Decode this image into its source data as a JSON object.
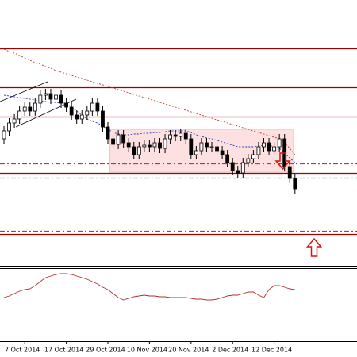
{
  "chart_data": {
    "type": "candlestick",
    "categories": [
      null,
      null,
      null,
      null,
      "7 Oct 2014",
      null,
      null,
      null,
      null,
      null,
      null,
      null,
      "17 Oct 2014",
      null,
      null,
      null,
      null,
      null,
      null,
      null,
      "29 Oct 2014",
      null,
      null,
      null,
      null,
      null,
      null,
      null,
      "10 Nov 2014",
      null,
      null,
      null,
      null,
      null,
      null,
      null,
      "20 Nov 2014",
      null,
      null,
      null,
      null,
      null,
      null,
      null,
      "2 Dec 2014",
      null,
      null,
      null,
      null,
      null,
      null,
      null,
      "12 Dec 2014",
      null,
      null,
      null,
      null
    ],
    "open": [
      160,
      170,
      180,
      185,
      195,
      200,
      195,
      205,
      215,
      217,
      210,
      215,
      205,
      200,
      190,
      185,
      190,
      195,
      205,
      195,
      175,
      160,
      153,
      165,
      155,
      150,
      140,
      150,
      152,
      150,
      155,
      148,
      160,
      165,
      163,
      167,
      160,
      140,
      145,
      155,
      150,
      150,
      145,
      140,
      130,
      120,
      117,
      130,
      135,
      140,
      150,
      155,
      145,
      150,
      160,
      125,
      110
    ],
    "high": [
      176,
      186,
      191,
      201,
      206,
      206,
      211,
      221,
      223,
      223,
      221,
      221,
      211,
      206,
      196,
      196,
      201,
      211,
      211,
      201,
      181,
      166,
      171,
      171,
      161,
      156,
      156,
      158,
      158,
      161,
      161,
      166,
      171,
      171,
      173,
      173,
      166,
      151,
      161,
      161,
      156,
      156,
      151,
      146,
      136,
      126,
      136,
      141,
      146,
      156,
      161,
      161,
      156,
      166,
      166,
      131,
      116
    ],
    "low": [
      154,
      164,
      174,
      179,
      189,
      189,
      189,
      199,
      209,
      204,
      204,
      199,
      194,
      184,
      179,
      179,
      184,
      189,
      189,
      169,
      154,
      147,
      147,
      149,
      144,
      134,
      134,
      144,
      144,
      144,
      142,
      142,
      154,
      157,
      157,
      154,
      134,
      134,
      139,
      144,
      144,
      139,
      134,
      124,
      114,
      111,
      111,
      124,
      129,
      134,
      144,
      139,
      139,
      144,
      119,
      104,
      91
    ],
    "close": [
      170,
      180,
      185,
      195,
      200,
      195,
      205,
      215,
      217,
      210,
      215,
      205,
      200,
      190,
      185,
      190,
      195,
      205,
      195,
      175,
      160,
      153,
      165,
      155,
      150,
      140,
      150,
      152,
      150,
      155,
      148,
      160,
      165,
      163,
      167,
      160,
      140,
      145,
      155,
      150,
      150,
      145,
      140,
      130,
      120,
      117,
      130,
      135,
      140,
      150,
      155,
      145,
      150,
      160,
      125,
      110,
      97
    ],
    "ylim": [
      0,
      335
    ],
    "moving_averages": [
      {
        "color": "#c0392b",
        "values": [
          273,
          270,
          268,
          265,
          262,
          259,
          256,
          254,
          251,
          249,
          246,
          244,
          242,
          240,
          238,
          236,
          234,
          232,
          230,
          228,
          226,
          224,
          222,
          220,
          218,
          216,
          214,
          212,
          210,
          208,
          206,
          204,
          202,
          200,
          198,
          196,
          194,
          192,
          190,
          188,
          186,
          184,
          182,
          180,
          178,
          176,
          174,
          172,
          170,
          168,
          166,
          164,
          162,
          160,
          155,
          148,
          140
        ]
      },
      {
        "color": "#2436c8",
        "values": [
          215,
          214,
          213,
          212,
          211,
          210,
          209,
          208,
          207,
          206,
          206,
          205,
          205,
          200,
          195,
          190,
          185,
          182,
          180,
          176,
          172,
          168,
          166,
          165,
          165,
          166,
          166,
          167,
          167,
          168,
          168,
          169,
          170,
          170,
          170,
          170,
          168,
          165,
          163,
          161,
          160,
          158,
          156,
          154,
          152,
          150,
          150,
          150,
          150,
          151,
          152,
          152,
          150,
          148,
          142,
          136,
          130
        ]
      }
    ],
    "levels": [
      {
        "value": 274,
        "style": "solid",
        "color": "#a00000"
      },
      {
        "value": 225,
        "style": "solid",
        "color": "#a00000"
      },
      {
        "value": 188,
        "style": "solid",
        "color": "#a00000"
      },
      {
        "value": 129,
        "style": "dashed",
        "color": "#d03030"
      },
      {
        "value": 117,
        "style": "solid",
        "color": "#a00000"
      },
      {
        "value": 111,
        "style": "dashed",
        "color": "#3a9a3a"
      },
      {
        "value": 44,
        "style": "dashed",
        "color": "#d03030"
      },
      {
        "value": 40,
        "style": "solid",
        "color": "#a00000"
      }
    ],
    "zone": {
      "high": 172,
      "low": 118,
      "start": 21,
      "color": "#fde0e0"
    },
    "oscillator": {
      "color": "#b03030",
      "ylim": [
        0,
        92
      ],
      "values": [
        55,
        57,
        60,
        63,
        65,
        66,
        70,
        75,
        80,
        82,
        84,
        85,
        85,
        84,
        82,
        80,
        78,
        75,
        72,
        68,
        65,
        60,
        55,
        52,
        54,
        56,
        57,
        58,
        57,
        57,
        56,
        56,
        55,
        55,
        55,
        55,
        54,
        53,
        53,
        52,
        52,
        53,
        55,
        57,
        58,
        58,
        60,
        62,
        62,
        58,
        55,
        65,
        70,
        70,
        68,
        66,
        65
      ]
    }
  }
}
